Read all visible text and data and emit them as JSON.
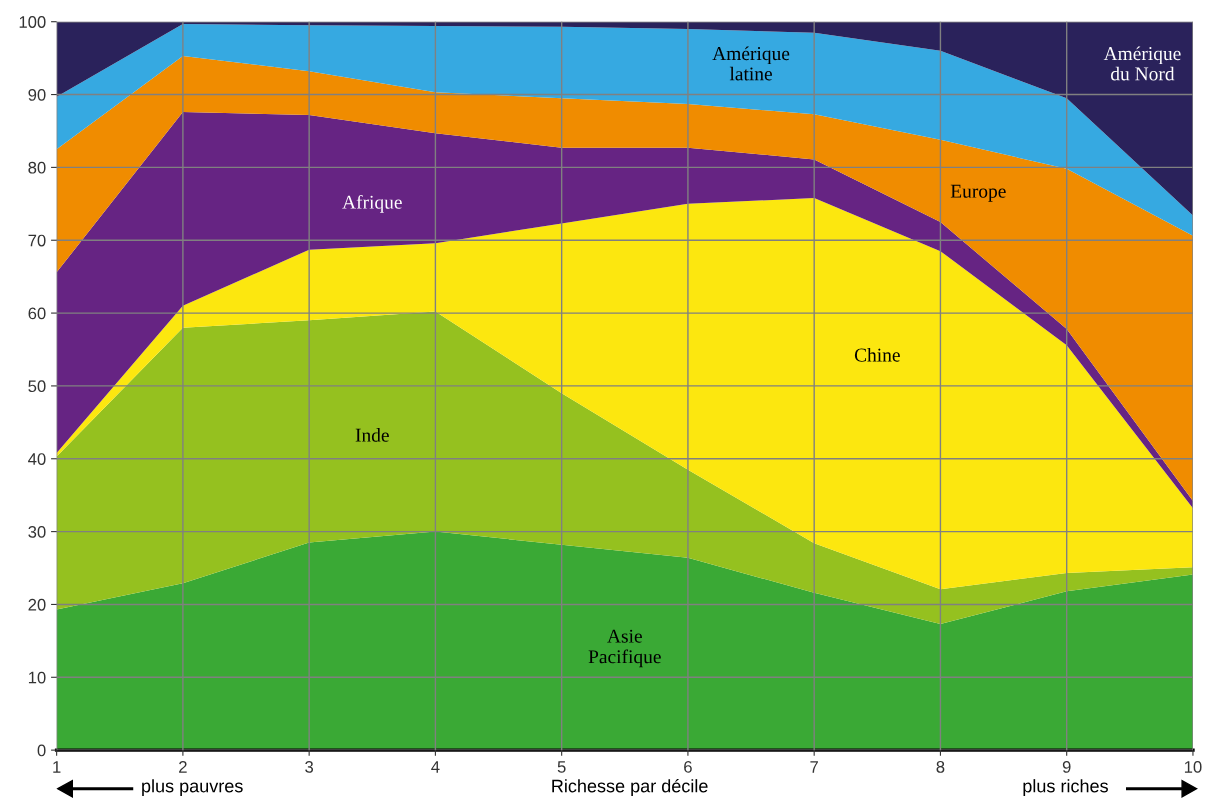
{
  "chart_data": {
    "type": "area",
    "stacked": true,
    "xlabel": "Richesse par décile",
    "x": [
      1,
      2,
      3,
      4,
      5,
      6,
      7,
      8,
      9,
      10
    ],
    "xlim": [
      1,
      10
    ],
    "xticks": [
      1,
      2,
      3,
      4,
      5,
      6,
      7,
      8,
      9,
      10
    ],
    "ylim": [
      0,
      100
    ],
    "yticks": [
      0,
      10,
      20,
      30,
      40,
      50,
      60,
      70,
      80,
      90,
      100
    ],
    "grid": true,
    "legend": false,
    "annotations": [
      "plus pauvres",
      "plus riches"
    ],
    "series": [
      {
        "name": "Asie\nPacifique",
        "color": "#3aa935",
        "values": [
          19.3,
          22.9,
          28.5,
          30.0,
          28.2,
          26.4,
          21.6,
          17.3,
          21.8,
          24.1
        ]
      },
      {
        "name": "Inde",
        "color": "#95c11f",
        "values": [
          21.0,
          35.1,
          30.5,
          30.2,
          20.8,
          12.1,
          6.8,
          4.8,
          2.5,
          1.0
        ]
      },
      {
        "name": "Chine",
        "color": "#fce70f",
        "values": [
          0.5,
          3.0,
          9.7,
          9.4,
          23.3,
          36.5,
          47.4,
          46.4,
          31.3,
          8.1
        ]
      },
      {
        "name": "Afrique",
        "color": "#662483",
        "values": [
          24.8,
          26.6,
          18.5,
          15.1,
          10.4,
          7.7,
          5.3,
          4.0,
          2.2,
          1.0
        ]
      },
      {
        "name": "Europe",
        "color": "#f08c00",
        "values": [
          16.9,
          7.7,
          6.0,
          5.6,
          6.8,
          6.0,
          6.2,
          11.3,
          22.0,
          36.4
        ]
      },
      {
        "name": "Amérique\nlatine",
        "color": "#36a9e1",
        "values": [
          7.2,
          4.4,
          6.3,
          9.1,
          9.8,
          10.3,
          11.2,
          12.2,
          9.7,
          2.8
        ]
      },
      {
        "name": "Amérique\ndu Nord",
        "color": "#2a225b",
        "values": [
          10.3,
          0.3,
          0.5,
          0.6,
          0.7,
          1.0,
          1.5,
          4.0,
          10.5,
          26.6
        ]
      }
    ]
  }
}
